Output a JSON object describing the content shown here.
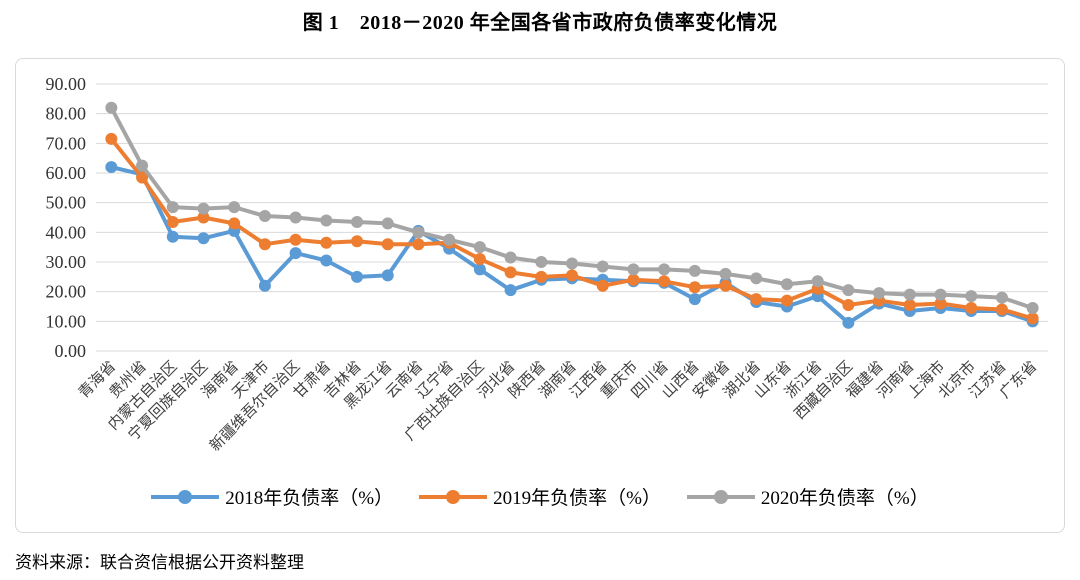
{
  "page": {
    "title": "图 1　2018－2020 年全国各省市政府负债率变化情况",
    "source_note": "资料来源：联合资信根据公开资料整理"
  },
  "colors": {
    "blue": "#5B9BD5",
    "orange": "#ED7D31",
    "gray": "#A5A5A5",
    "gridline": "#D9D9D9",
    "axis_text": "#333333",
    "border": "#D9D9D9"
  },
  "chart_data": {
    "type": "line",
    "title": "图 1　2018－2020 年全国各省市政府负债率变化情况",
    "categories": [
      "青海省",
      "贵州省",
      "内蒙古自治区",
      "宁夏回族自治区",
      "海南省",
      "天津市",
      "新疆维吾尔自治区",
      "甘肃省",
      "吉林省",
      "黑龙江省",
      "云南省",
      "辽宁省",
      "广西壮族自治区",
      "河北省",
      "陕西省",
      "湖南省",
      "江西省",
      "重庆市",
      "四川省",
      "山西省",
      "安徽省",
      "湖北省",
      "山东省",
      "浙江省",
      "西藏自治区",
      "福建省",
      "河南省",
      "上海市",
      "北京市",
      "江苏省",
      "广东省"
    ],
    "series": [
      {
        "name": "2018年负债率（%）",
        "year": "2018",
        "color_key": "blue",
        "values": [
          62,
          59.5,
          38.5,
          38,
          40.5,
          22,
          33,
          30.5,
          25,
          25.5,
          40.5,
          34.5,
          27.5,
          20.5,
          24,
          24.5,
          24,
          23.5,
          23,
          17.5,
          23,
          16.5,
          15,
          18.5,
          9.5,
          16,
          13.5,
          14.5,
          13.5,
          13.5,
          10
        ]
      },
      {
        "name": "2019年负债率（%）",
        "year": "2019",
        "color_key": "orange",
        "values": [
          71.5,
          58.5,
          43.5,
          45,
          43,
          36,
          37.5,
          36.5,
          37,
          36,
          36,
          36.5,
          31,
          26.5,
          25,
          25.5,
          22,
          24,
          23.5,
          21.5,
          22,
          17.5,
          17,
          21,
          15.5,
          17,
          15.5,
          16,
          14.5,
          14,
          11
        ]
      },
      {
        "name": "2020年负债率（%）",
        "year": "2020",
        "color_key": "gray",
        "values": [
          82,
          62.5,
          48.5,
          48,
          48.5,
          45.5,
          45,
          44,
          43.5,
          43,
          40,
          37.5,
          35,
          31.5,
          30,
          29.5,
          28.5,
          27.5,
          27.5,
          27,
          26,
          24.5,
          22.5,
          23.5,
          20.5,
          19.5,
          19,
          19,
          18.5,
          18,
          14.5
        ]
      }
    ],
    "xlabel": "",
    "ylabel": "",
    "ylim": [
      0,
      90
    ],
    "ytick_step": 10,
    "ytick_decimals": 2,
    "grid": true,
    "legend_position": "bottom"
  }
}
